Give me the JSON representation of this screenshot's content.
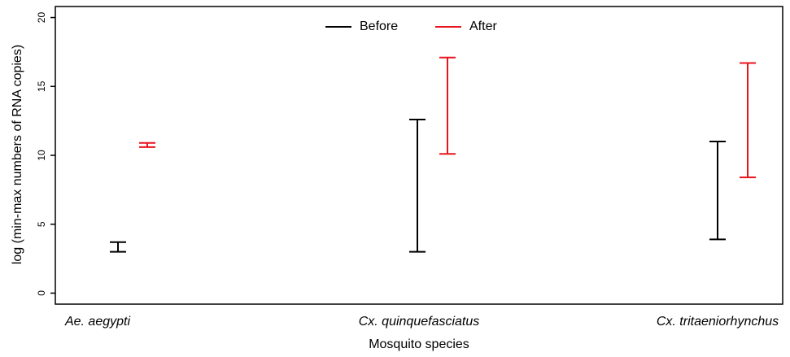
{
  "chart_data": {
    "type": "range",
    "categories": [
      "Ae. aegypti",
      "Cx. quinquefasciatus",
      "Cx. tritaeniorhynchus"
    ],
    "series": [
      {
        "name": "Before",
        "color": "#000000",
        "min": [
          3.0,
          3.0,
          3.9
        ],
        "max": [
          3.7,
          12.6,
          11.0
        ]
      },
      {
        "name": "After",
        "color": "#e8141c",
        "min": [
          10.6,
          10.1,
          8.4
        ],
        "max": [
          10.9,
          17.1,
          16.7
        ]
      }
    ],
    "xlabel": "Mosquito species",
    "ylabel": "log (min-max numbers of RNA copies)",
    "ylim": [
      -0.8,
      20.8
    ],
    "yticks": [
      0,
      5,
      10,
      15,
      20
    ],
    "legend": "top"
  }
}
